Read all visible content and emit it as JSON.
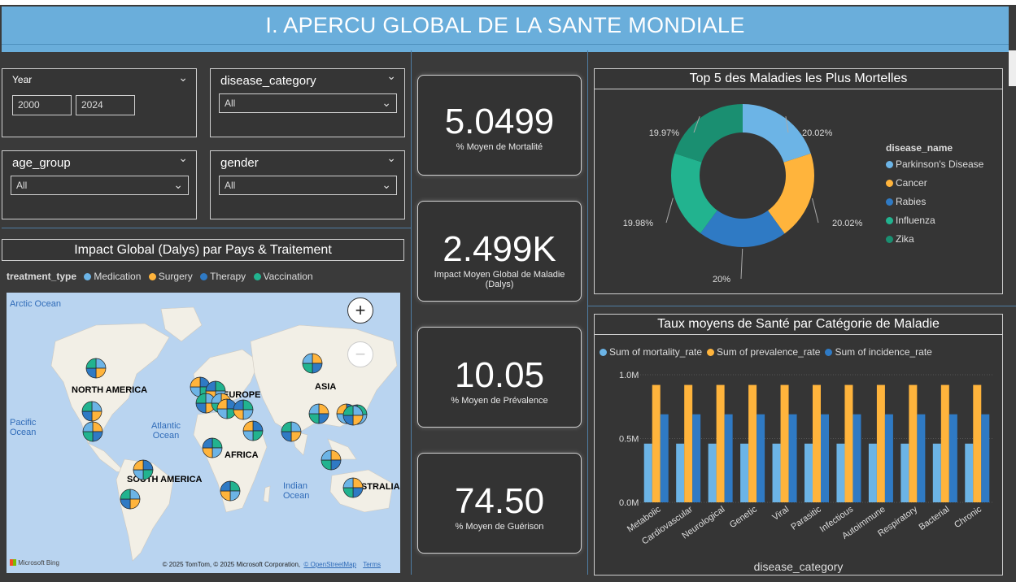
{
  "header": {
    "title": "I. APERCU GLOBAL DE LA SANTE MONDIALE"
  },
  "colors": {
    "medication": "#6cb4e6",
    "surgery": "#ffb43c",
    "therapy": "#2f7ac4",
    "vaccination": "#22b38f",
    "zika": "#1a8f71",
    "title_bar": "#6aaedb"
  },
  "filters": {
    "year": {
      "label": "Year",
      "start": "2000",
      "end": "2024"
    },
    "disease_category": {
      "label": "disease_category",
      "value": "All"
    },
    "age_group": {
      "label": "age_group",
      "value": "All"
    },
    "gender": {
      "label": "gender",
      "value": "All"
    }
  },
  "kpis": [
    {
      "value": "5.0499",
      "label": "% Moyen de Mortalité"
    },
    {
      "value": "2.499K",
      "label": "Impact Moyen Global de Maladie (Dalys)"
    },
    {
      "value": "10.05",
      "label": "% Moyen de Prévalence"
    },
    {
      "value": "74.50",
      "label": "% Moyen de Guérison"
    }
  ],
  "map": {
    "title": "Impact Global (Dalys) par Pays & Traitement",
    "legend_title": "treatment_type",
    "legend": [
      "Medication",
      "Surgery",
      "Therapy",
      "Vaccination"
    ],
    "regions": [
      "NORTH AMERICA",
      "EUROPE",
      "ASIA",
      "AFRICA",
      "SOUTH AMERICA",
      "AUSTRALIA"
    ],
    "oceans": [
      "Arctic Ocean",
      "Pacific Ocean",
      "Atlantic Ocean",
      "Indian Ocean"
    ],
    "zoom_in": "+",
    "zoom_out": "−",
    "brand": "Microsoft Bing",
    "copyright": "© 2025 TomTom, © 2025 Microsoft Corporation,",
    "osm_link": "© OpenStreetMap",
    "terms": "Terms"
  },
  "donut": {
    "title": "Top 5 des Maladies les Plus Mortelles",
    "legend_title": "disease_name",
    "chart_data": {
      "type": "pie",
      "categories": [
        "Parkinson's Disease",
        "Cancer",
        "Rabies",
        "Influenza",
        "Zika"
      ],
      "values": [
        20.02,
        20.02,
        20,
        19.98,
        19.97
      ],
      "labels": [
        "20.02%",
        "20.02%",
        "20%",
        "19.98%",
        "19.97%"
      ]
    }
  },
  "bar": {
    "title": "Taux moyens de Santé par Catégorie de Maladie",
    "xlabel": "disease_category",
    "chart_data": {
      "type": "bar",
      "categories": [
        "Metabolic",
        "Cardiovascular",
        "Neurological",
        "Genetic",
        "Viral",
        "Parasitic",
        "Infectious",
        "Autoimmune",
        "Respiratory",
        "Bacterial",
        "Chronic"
      ],
      "series": [
        {
          "name": "Sum of mortality_rate",
          "values": [
            0.46,
            0.46,
            0.46,
            0.46,
            0.46,
            0.46,
            0.46,
            0.46,
            0.46,
            0.46,
            0.46
          ]
        },
        {
          "name": "Sum of prevalence_rate",
          "values": [
            0.92,
            0.92,
            0.92,
            0.92,
            0.92,
            0.92,
            0.92,
            0.92,
            0.92,
            0.92,
            0.92
          ]
        },
        {
          "name": "Sum of incidence_rate",
          "values": [
            0.69,
            0.69,
            0.69,
            0.69,
            0.69,
            0.69,
            0.69,
            0.69,
            0.69,
            0.69,
            0.69
          ]
        }
      ],
      "ylim": [
        0,
        1.0
      ],
      "yticks": [
        "0.0M",
        "0.5M",
        "1.0M"
      ]
    }
  }
}
